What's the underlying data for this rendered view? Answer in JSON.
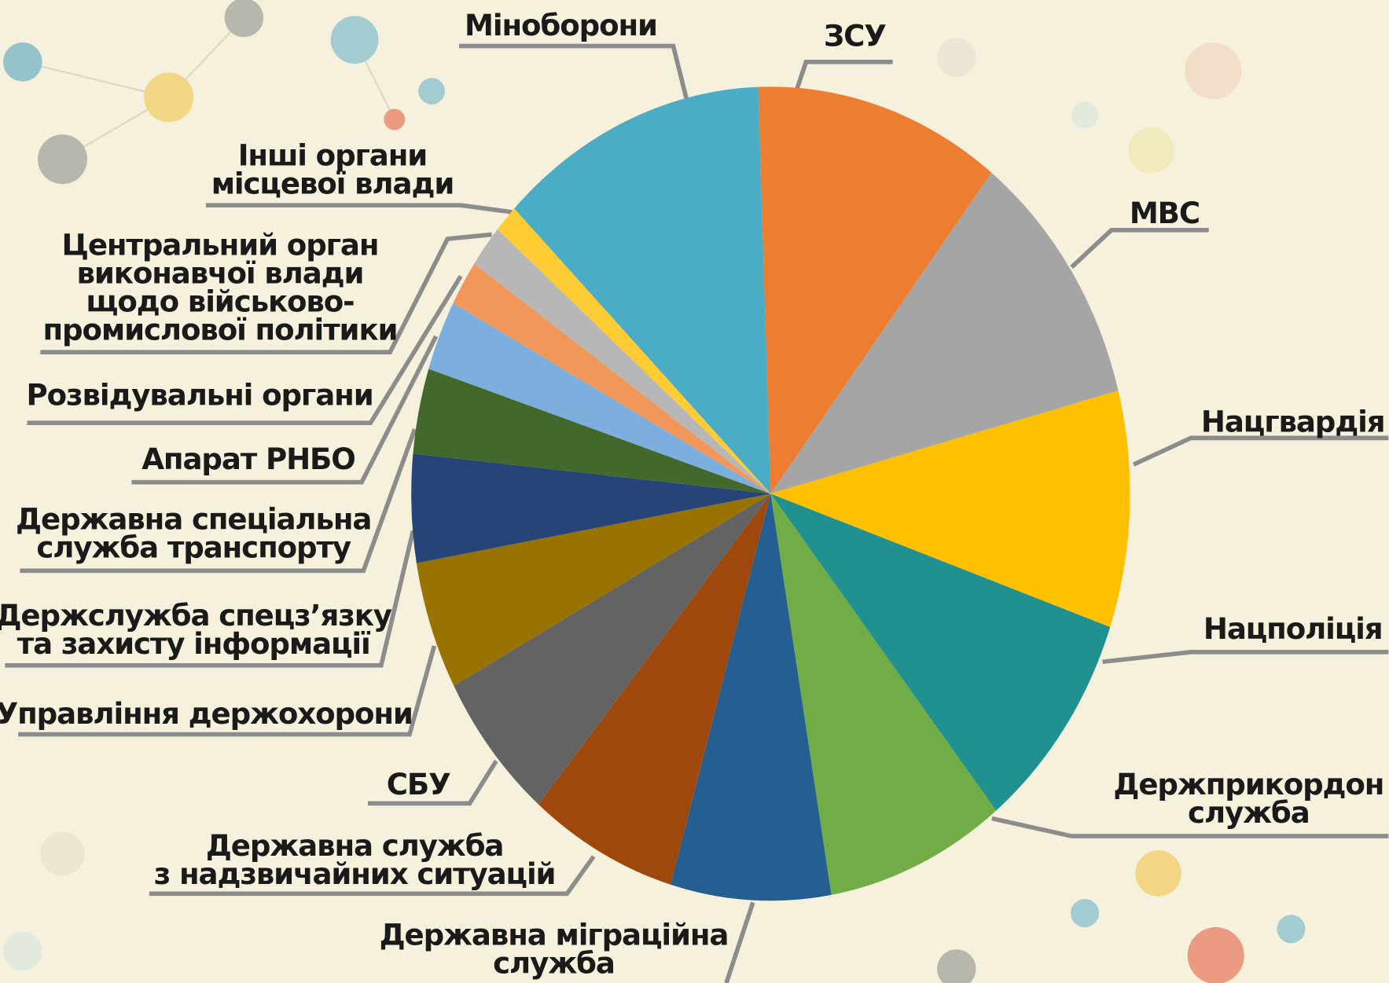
{
  "chart_data": {
    "type": "pie",
    "categories": [
      [
        "ЗСУ"
      ],
      [
        "МВС"
      ],
      [
        "Нацгвардія"
      ],
      [
        "Нацполіція"
      ],
      [
        "Держприкордон",
        "служба"
      ],
      [
        "Державна міграційна",
        "служба"
      ],
      [
        "Державна служба",
        "з надзвичайних ситуацій"
      ],
      [
        "СБУ"
      ],
      [
        "Управління держохорони"
      ],
      [
        "Держслужба спецз’язку",
        "та захисту інформації"
      ],
      [
        "Державна спеціальна",
        "служба транспорту"
      ],
      [
        "Апарат РНБО"
      ],
      [
        "Розвідувальні органи"
      ],
      [
        "Центральний орган",
        "виконавчої влади",
        "щодо військово-",
        "промислової політики"
      ],
      [
        "Інші органи",
        "місцевої влади"
      ],
      [
        "Міноборони"
      ]
    ],
    "values": [
      11.1,
      10.4,
      9.4,
      8.9,
      8.1,
      7.2,
      6.7,
      6.0,
      5.1,
      4.3,
      3.4,
      2.8,
      1.8,
      1.7,
      1.1,
      12.1
    ],
    "colors": [
      "#ed7d31",
      "#a5a5a5",
      "#ffc000",
      "#21918f",
      "#70ad47",
      "#255e91",
      "#9e480e",
      "#636363",
      "#997300",
      "#264478",
      "#43682b",
      "#7cafdd",
      "#f1975a",
      "#b7b7b7",
      "#ffcd33",
      "#4bacc6"
    ]
  }
}
